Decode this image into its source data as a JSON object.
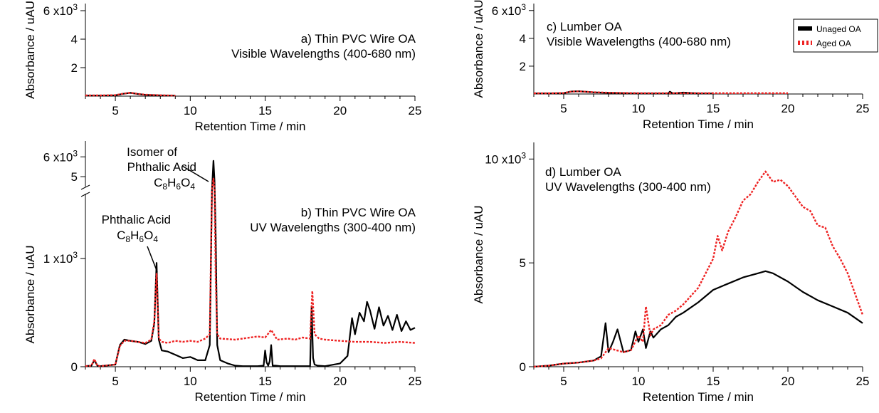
{
  "legend": {
    "unaged": "Unaged OA",
    "aged": "Aged OA",
    "unaged_color": "#000000",
    "aged_color": "#ee2222"
  },
  "chart_data": [
    {
      "id": "a",
      "type": "line",
      "label_lines": [
        "a) Thin PVC Wire OA",
        "Visible Wavelengths (400-680 nm)"
      ],
      "xlabel": "Retention Time / min",
      "ylabel": "Absorbance / uAU",
      "xlim": [
        3,
        25
      ],
      "ylim": [
        0,
        6500
      ],
      "xticks": [
        "5",
        "10",
        "15",
        "20",
        "25"
      ],
      "yticks": [
        "2",
        "4",
        "6 x10³"
      ],
      "grid": false,
      "series": [
        {
          "key": "unaged",
          "style": "solid",
          "x": [
            3,
            4,
            5,
            5.5,
            6,
            6.5,
            7,
            8,
            9
          ],
          "y": [
            40,
            40,
            60,
            160,
            230,
            150,
            90,
            50,
            30
          ]
        },
        {
          "key": "aged",
          "style": "dashed",
          "x": [
            3,
            4,
            5,
            5.5,
            6,
            6.5,
            7,
            8,
            9
          ],
          "y": [
            50,
            50,
            70,
            170,
            240,
            160,
            100,
            60,
            40
          ]
        }
      ]
    },
    {
      "id": "b",
      "type": "line",
      "label_lines": [
        "b) Thin PVC Wire OA",
        "UV Wavelengths (300-400 nm)"
      ],
      "xlabel": "Retention Time / min",
      "ylabel": "Absorbance / uAU",
      "xlim": [
        3,
        25
      ],
      "ylim_lower": [
        0,
        1600
      ],
      "ylim_upper": [
        4500,
        6800
      ],
      "xticks": [
        "5",
        "10",
        "15",
        "20",
        "25"
      ],
      "yticks_lower": [
        "0",
        "1 x10³"
      ],
      "yticks_upper": [
        "5",
        "6 x10³"
      ],
      "grid": false,
      "annotations": [
        {
          "lines": [
            "Phthalic Acid"
          ],
          "formula": [
            "C",
            "8",
            "H",
            "6",
            "O",
            "4"
          ]
        },
        {
          "lines": [
            "Isomer of",
            "Phthalic Acid"
          ],
          "formula": [
            "C",
            "8",
            "H",
            "6",
            "O",
            "4"
          ]
        }
      ],
      "series": [
        {
          "key": "unaged",
          "style": "solid",
          "x": [
            3,
            3.4,
            3.6,
            3.8,
            4,
            5,
            5.3,
            5.6,
            6,
            6.5,
            7,
            7.4,
            7.6,
            7.75,
            7.9,
            8.1,
            8.5,
            9,
            9.5,
            10,
            10.5,
            11,
            11.3,
            11.45,
            11.55,
            11.62,
            11.7,
            11.8,
            12,
            12.5,
            13,
            13.5,
            14,
            14.5,
            14.9,
            15,
            15.1,
            15.2,
            15.3,
            15.4,
            15.5,
            15.7,
            16,
            17,
            18,
            18.1,
            18.2,
            18.3,
            18.5,
            19,
            20,
            20.5,
            20.8,
            21,
            21.3,
            21.6,
            21.8,
            22,
            22.3,
            22.6,
            22.9,
            23.2,
            23.5,
            23.8,
            24.1,
            24.4,
            24.7,
            25
          ],
          "y": [
            5,
            10,
            60,
            10,
            5,
            20,
            200,
            250,
            240,
            230,
            210,
            240,
            400,
            960,
            250,
            150,
            140,
            110,
            80,
            90,
            60,
            60,
            200,
            3000,
            5800,
            4800,
            1200,
            200,
            60,
            30,
            10,
            5,
            5,
            5,
            10,
            150,
            40,
            10,
            50,
            200,
            10,
            10,
            5,
            5,
            5,
            560,
            80,
            20,
            10,
            5,
            30,
            100,
            450,
            300,
            500,
            420,
            600,
            520,
            350,
            550,
            380,
            470,
            340,
            480,
            330,
            420,
            340,
            360
          ]
        },
        {
          "key": "aged",
          "style": "dashed",
          "x": [
            3,
            3.4,
            3.6,
            3.8,
            4,
            5,
            5.3,
            5.6,
            6,
            6.5,
            7,
            7.4,
            7.6,
            7.75,
            7.9,
            8.1,
            8.5,
            9,
            9.5,
            10,
            10.5,
            11,
            11.3,
            11.45,
            11.55,
            11.62,
            11.7,
            11.8,
            12,
            13,
            14,
            14.5,
            15,
            15.4,
            15.8,
            16.5,
            17,
            17.5,
            18,
            18.15,
            18.3,
            18.6,
            19,
            20,
            21,
            22,
            23,
            24,
            25
          ],
          "y": [
            5,
            10,
            70,
            10,
            5,
            20,
            190,
            240,
            240,
            230,
            220,
            250,
            420,
            860,
            260,
            230,
            220,
            240,
            230,
            240,
            230,
            260,
            300,
            2800,
            4900,
            4000,
            800,
            300,
            260,
            250,
            270,
            280,
            270,
            340,
            250,
            260,
            250,
            270,
            260,
            700,
            300,
            260,
            250,
            240,
            230,
            230,
            220,
            230,
            220
          ]
        }
      ]
    },
    {
      "id": "c",
      "type": "line",
      "label_lines": [
        "c) Lumber OA",
        "Visible Wavelengths (400-680 nm)"
      ],
      "xlabel": "Retention Time / min",
      "ylabel": "Absorbance / uAU",
      "xlim": [
        3,
        25
      ],
      "ylim": [
        0,
        6500
      ],
      "xticks": [
        "5",
        "10",
        "15",
        "20",
        "25"
      ],
      "yticks": [
        "2",
        "4",
        "6 x10³"
      ],
      "grid": false,
      "series": [
        {
          "key": "unaged",
          "style": "solid",
          "x": [
            3,
            4,
            5,
            5.5,
            6,
            6.5,
            7,
            8,
            9,
            9.5,
            11,
            12,
            12.1,
            12.3,
            13,
            14,
            15
          ],
          "y": [
            40,
            40,
            60,
            180,
            200,
            160,
            120,
            80,
            60,
            40,
            30,
            40,
            170,
            40,
            100,
            40,
            30
          ]
        },
        {
          "key": "aged",
          "style": "dashed",
          "x": [
            3,
            4,
            5,
            5.5,
            6,
            6.5,
            7,
            8,
            9,
            10,
            12,
            14,
            16,
            18,
            20
          ],
          "y": [
            50,
            50,
            70,
            170,
            190,
            160,
            130,
            90,
            70,
            60,
            60,
            60,
            60,
            60,
            60
          ]
        }
      ]
    },
    {
      "id": "d",
      "type": "line",
      "label_lines": [
        "d) Lumber OA",
        "UV Wavelengths (300-400 nm)"
      ],
      "xlabel": "Retention Time / min",
      "ylabel": "Absorbance / uAU",
      "xlim": [
        3,
        25
      ],
      "ylim": [
        0,
        10800
      ],
      "xticks": [
        "5",
        "10",
        "15",
        "20",
        "25"
      ],
      "yticks": [
        "0",
        "5",
        "10 x10³"
      ],
      "grid": false,
      "series": [
        {
          "key": "unaged",
          "style": "solid",
          "x": [
            3,
            4,
            5,
            6,
            7,
            7.5,
            7.8,
            8,
            8.3,
            8.6,
            9,
            9.5,
            9.8,
            10,
            10.3,
            10.5,
            10.8,
            11,
            11.5,
            12,
            12.5,
            13,
            14,
            15,
            16,
            17,
            18,
            18.5,
            19,
            20,
            21,
            22,
            23,
            24,
            25
          ],
          "y": [
            0,
            50,
            150,
            200,
            300,
            500,
            2100,
            700,
            1200,
            1800,
            700,
            800,
            1700,
            1200,
            1800,
            900,
            1700,
            1400,
            1800,
            2000,
            2400,
            2600,
            3100,
            3700,
            4000,
            4300,
            4500,
            4600,
            4500,
            4100,
            3600,
            3200,
            2900,
            2600,
            2100
          ]
        },
        {
          "key": "aged",
          "style": "dashed",
          "x": [
            3,
            4,
            5,
            6,
            7,
            7.5,
            8,
            8.5,
            9,
            9.5,
            10,
            10.3,
            10.5,
            10.8,
            11,
            11.5,
            12,
            12.5,
            13,
            14,
            15,
            15.3,
            15.6,
            16,
            16.5,
            17,
            17.5,
            18,
            18.5,
            19,
            19.5,
            20,
            21,
            21.5,
            22,
            22.5,
            23,
            23.5,
            24,
            24.5,
            25
          ],
          "y": [
            0,
            50,
            150,
            200,
            300,
            400,
            900,
            800,
            700,
            800,
            1500,
            1200,
            2900,
            1500,
            1800,
            2000,
            2500,
            2700,
            3000,
            3800,
            5200,
            6300,
            5600,
            6500,
            7200,
            8000,
            8300,
            8900,
            9400,
            8900,
            9000,
            8700,
            7700,
            7500,
            6800,
            6700,
            5800,
            5200,
            4500,
            3500,
            2500
          ]
        }
      ]
    }
  ]
}
